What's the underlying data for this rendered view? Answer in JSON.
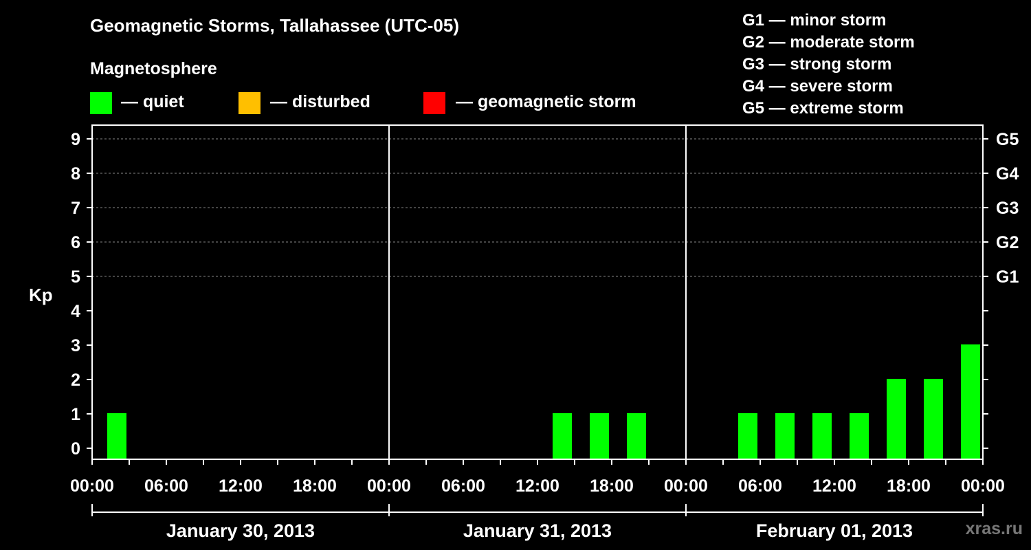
{
  "header": {
    "title": "Geomagnetic Storms, Tallahassee (UTC-05)",
    "magnetosphere_label": "Magnetosphere"
  },
  "legend": [
    {
      "label": "— quiet",
      "color": "#00ff00"
    },
    {
      "label": "— disturbed",
      "color": "#ffbf00"
    },
    {
      "label": "— geomagnetic storm",
      "color": "#ff0000"
    }
  ],
  "storm_scale": [
    "G1 — minor storm",
    "G2 — moderate storm",
    "G3 — strong storm",
    "G4 — severe storm",
    "G5 — extreme storm"
  ],
  "watermark": "xras.ru",
  "chart_data": {
    "type": "bar",
    "title": "Geomagnetic Storms, Tallahassee (UTC-05)",
    "ylabel": "Kp",
    "ylim": [
      0,
      9
    ],
    "y_ticks": [
      "0",
      "1",
      "2",
      "3",
      "4",
      "5",
      "6",
      "7",
      "8",
      "9"
    ],
    "right_axis_labels": [
      {
        "kp": 5,
        "label": "G1"
      },
      {
        "kp": 6,
        "label": "G2"
      },
      {
        "kp": 7,
        "label": "G3"
      },
      {
        "kp": 8,
        "label": "G4"
      },
      {
        "kp": 9,
        "label": "G5"
      }
    ],
    "x_tick_labels": [
      "00:00",
      "06:00",
      "12:00",
      "18:00",
      "00:00",
      "06:00",
      "12:00",
      "18:00",
      "00:00",
      "06:00",
      "12:00",
      "18:00",
      "00:00"
    ],
    "days": [
      "January 30, 2013",
      "January 31, 2013",
      "February 01, 2013"
    ],
    "interval_hours": 3,
    "series": [
      {
        "name": "January 30, 2013",
        "values": [
          1,
          0,
          0,
          0,
          0,
          0,
          0,
          0
        ]
      },
      {
        "name": "January 31, 2013",
        "values": [
          0,
          0,
          0,
          0,
          1,
          1,
          1,
          0
        ]
      },
      {
        "name": "February 01, 2013",
        "values": [
          0,
          1,
          1,
          1,
          1,
          2,
          2,
          3
        ]
      }
    ],
    "grid": "dashed at Kp 5–9"
  }
}
